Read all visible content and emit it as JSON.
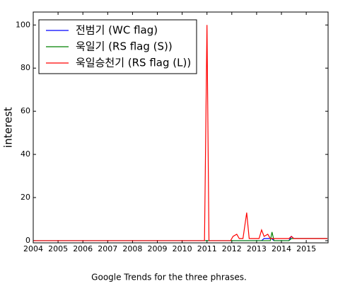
{
  "chart_data": {
    "type": "line",
    "ylabel": "interest",
    "caption": "Google Trends for the three phrases.",
    "xlim": [
      2004,
      2015.88
    ],
    "xticks": [
      2004,
      2005,
      2006,
      2007,
      2008,
      2009,
      2010,
      2011,
      2012,
      2013,
      2014,
      2015
    ],
    "ylim": [
      -1,
      106
    ],
    "yticks": [
      0,
      20,
      40,
      60,
      80,
      100
    ],
    "legend": "upper left",
    "series": [
      {
        "name": "전범기 (WC flag)",
        "color": "#0000ff",
        "x": [
          2004,
          2013.2,
          2013.3,
          2013.6,
          2013.7,
          2014.3,
          2014.4,
          2014.5,
          2015.85
        ],
        "values": [
          0,
          0,
          1,
          1,
          0,
          0,
          2,
          1,
          1
        ]
      },
      {
        "name": "욱일기 (RS flag (S))",
        "color": "#008000",
        "x": [
          2004,
          2013.55,
          2013.62,
          2013.7,
          2014.3,
          2014.4,
          2015.85
        ],
        "values": [
          0,
          0,
          4,
          0,
          0,
          1,
          1
        ]
      },
      {
        "name": "욱일승천기 (RS flag (L))",
        "color": "#ff0000",
        "x": [
          2004,
          2010.9,
          2011.0,
          2011.08,
          2011.95,
          2012.05,
          2012.2,
          2012.3,
          2012.45,
          2012.6,
          2012.7,
          2013.1,
          2013.2,
          2013.3,
          2013.45,
          2013.55,
          2014.3,
          2014.4,
          2014.5,
          2015.85
        ],
        "values": [
          0,
          0,
          100,
          0,
          0,
          2,
          3,
          1,
          1,
          13,
          1,
          1,
          5,
          2,
          3,
          1,
          1,
          2,
          1,
          1
        ]
      }
    ]
  }
}
